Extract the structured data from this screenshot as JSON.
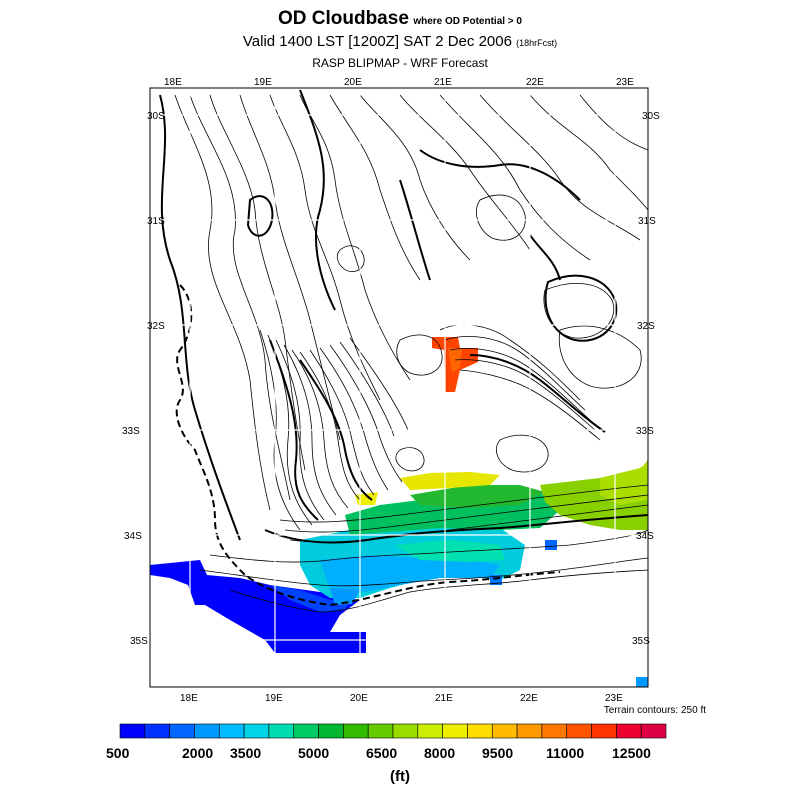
{
  "title": {
    "main": "OD Cloudbase",
    "qualifier": "where OD Potential > 0",
    "valid": "Valid 1400 LST [1200Z] SAT 2 Dec 2006",
    "forecast": "(18hrFcst)",
    "source": "RASP BLIPMAP - WRF Forecast"
  },
  "map": {
    "top_lon_labels": [
      "18E",
      "19E",
      "20E",
      "21E",
      "22E",
      "23E"
    ],
    "bottom_lon_labels": [
      "18E",
      "19E",
      "20E",
      "21E",
      "22E",
      "23E"
    ],
    "left_lat_labels": [
      "30S",
      "31S",
      "32S",
      "33S",
      "34S",
      "35S"
    ],
    "right_lat_labels": [
      "30S",
      "31S",
      "32S",
      "33S",
      "34S",
      "35S"
    ],
    "terrain_note": "Terrain contours: 250 ft"
  },
  "colorbar": {
    "labels": [
      "500",
      "2000",
      "3500",
      "5000",
      "6500",
      "8000",
      "9500",
      "11000",
      "12500"
    ],
    "unit": "(ft)",
    "colors": [
      "#0000ff",
      "#0033ff",
      "#0066ff",
      "#0099ff",
      "#00bbff",
      "#00d4e6",
      "#00ddb0",
      "#00cc66",
      "#00b832",
      "#33bb00",
      "#66cc00",
      "#99dd00",
      "#ccee00",
      "#eeee00",
      "#ffdd00",
      "#ffbb00",
      "#ff9900",
      "#ff7700",
      "#ff5500",
      "#ff3300",
      "#ee0033",
      "#dd0044"
    ]
  }
}
